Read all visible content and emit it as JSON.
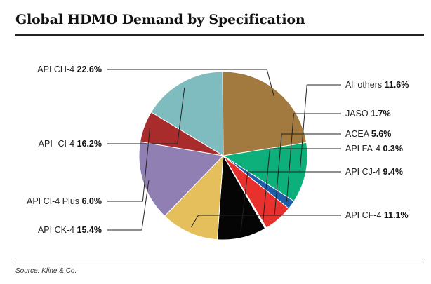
{
  "title": "Global HDMO Demand by Specification",
  "source": "Source: Kline & Co.",
  "chart_data": {
    "type": "pie",
    "title": "Global HDMO Demand by Specification",
    "unit": "%",
    "start_angle_deg": -9,
    "direction": "clockwise",
    "slices": [
      {
        "name": "All others",
        "value": 11.6,
        "label": "11.6%",
        "color": "#0daf7a"
      },
      {
        "name": "JASO",
        "value": 1.7,
        "label": "1.7%",
        "color": "#1f5ea8"
      },
      {
        "name": "ACEA",
        "value": 5.6,
        "label": "5.6%",
        "color": "#e8302c"
      },
      {
        "name": "API FA-4",
        "value": 0.3,
        "label": "0.3%",
        "color": "#f3f3f3"
      },
      {
        "name": "API CJ-4",
        "value": 9.4,
        "label": "9.4%",
        "color": "#050505"
      },
      {
        "name": "API CF-4",
        "value": 11.1,
        "label": "11.1%",
        "color": "#e4bf5b"
      },
      {
        "name": "API CK-4",
        "value": 15.4,
        "label": "15.4%",
        "color": "#8f7fb3"
      },
      {
        "name": "API CI-4 Plus",
        "value": 6.0,
        "label": "6.0%",
        "color": "#a92c2c"
      },
      {
        "name": "API- CI-4",
        "value": 16.2,
        "label": "16.2%",
        "color": "#7fbcc0"
      },
      {
        "name": "API CH-4",
        "value": 22.6,
        "label": "22.6%",
        "color": "#a2793f"
      }
    ]
  }
}
